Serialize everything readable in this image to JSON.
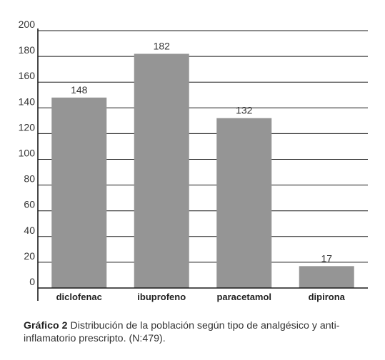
{
  "chart_data": {
    "type": "bar",
    "categories": [
      "diclofenac",
      "ibuprofeno",
      "paracetamol",
      "dipirona"
    ],
    "values": [
      148,
      182,
      132,
      17
    ],
    "data_labels": [
      "148",
      "182",
      "132",
      "17"
    ],
    "ylim": [
      0,
      200
    ],
    "yticks": [
      0,
      20,
      40,
      60,
      80,
      100,
      120,
      140,
      160,
      180,
      200
    ],
    "grid": true,
    "bar_color": "#959595",
    "grid_color": "#1a1a1a"
  },
  "caption": {
    "label": "Gráfico 2",
    "text": " Distribución de la población según tipo de analgésico y anti-inflamatorio prescripto. (N:479)."
  }
}
